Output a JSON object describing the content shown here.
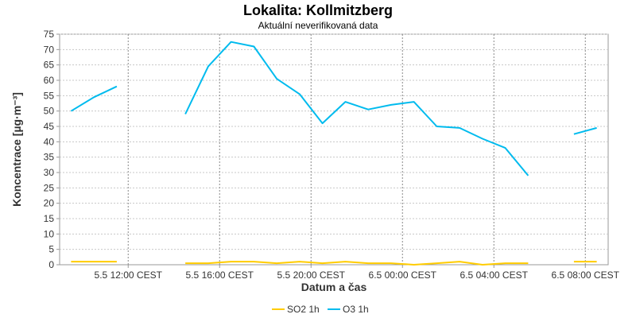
{
  "chart_data": {
    "type": "line",
    "title": "Lokalita: Kollmitzberg",
    "subtitle": "Aktuální neverifikovaná data",
    "xlabel": "Datum a čas",
    "ylabel": "Koncentrace [µg·m⁻³]",
    "ylim": [
      0,
      75
    ],
    "yticks": [
      0,
      5,
      10,
      15,
      20,
      25,
      30,
      35,
      40,
      45,
      50,
      55,
      60,
      65,
      70,
      75
    ],
    "xlim": [
      9,
      33
    ],
    "xticks": [
      {
        "x": 12,
        "label": "5.5 12:00 CEST"
      },
      {
        "x": 16,
        "label": "5.5 16:00 CEST"
      },
      {
        "x": 20,
        "label": "5.5 20:00 CEST"
      },
      {
        "x": 24,
        "label": "6.5 00:00 CEST"
      },
      {
        "x": 28,
        "label": "6.5 04:00 CEST"
      },
      {
        "x": 32,
        "label": "6.5 08:00 CEST"
      }
    ],
    "grid": true,
    "legend_position": "bottom-center",
    "series": [
      {
        "name": "SO2 1h",
        "color": "#ffcc00",
        "points": [
          [
            9.5,
            1
          ],
          [
            10.5,
            1
          ],
          [
            11.5,
            1
          ],
          null,
          [
            14.5,
            0.5
          ],
          [
            15.5,
            0.5
          ],
          [
            16.5,
            1
          ],
          [
            17.5,
            1
          ],
          [
            18.5,
            0.5
          ],
          [
            19.5,
            1
          ],
          [
            20.5,
            0.5
          ],
          [
            21.5,
            1
          ],
          [
            22.5,
            0.5
          ],
          [
            23.5,
            0.5
          ],
          [
            24.5,
            0
          ],
          [
            25.5,
            0.5
          ],
          [
            26.5,
            1
          ],
          [
            27.5,
            0
          ],
          [
            28.5,
            0.5
          ],
          [
            29.5,
            0.5
          ],
          null,
          [
            31.5,
            1
          ],
          [
            32.5,
            1
          ]
        ]
      },
      {
        "name": "O3 1h",
        "color": "#00bbee",
        "points": [
          [
            9.5,
            50
          ],
          [
            10.5,
            54.5
          ],
          [
            11.5,
            58
          ],
          null,
          [
            14.5,
            49
          ],
          [
            15.5,
            64.5
          ],
          [
            16.5,
            72.5
          ],
          [
            17.5,
            71
          ],
          [
            18.5,
            60.5
          ],
          [
            19.5,
            55.5
          ],
          [
            20.5,
            46
          ],
          [
            21.5,
            53
          ],
          [
            22.5,
            50.5
          ],
          [
            23.5,
            52
          ],
          [
            24.5,
            53
          ],
          [
            25.5,
            45
          ],
          [
            26.5,
            44.5
          ],
          [
            27.5,
            41
          ],
          [
            28.5,
            38
          ],
          [
            29.5,
            29
          ],
          null,
          [
            31.5,
            42.5
          ],
          [
            32.5,
            44.5
          ]
        ]
      }
    ]
  }
}
